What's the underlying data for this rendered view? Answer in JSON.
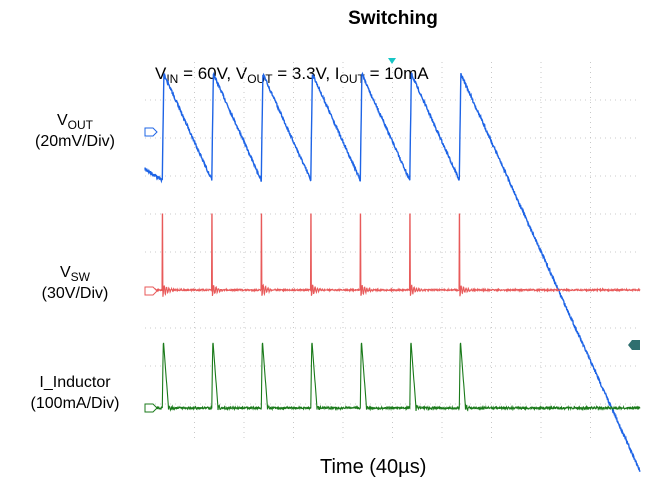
{
  "chart_data": {
    "type": "line",
    "title": "Switching",
    "conditions": {
      "v_in_sym": "V",
      "v_in_sub": "IN",
      "v_in_val": " = 60V, ",
      "v_out_sym": "V",
      "v_out_sub": "OUT",
      "v_out_val": " = 3.3V, ",
      "i_out_sym": "I",
      "i_out_sub": "OUT",
      "i_out_val": " = 10mA"
    },
    "xlabel": "Time (40µs)",
    "grid": true,
    "time_per_div_us": 40,
    "switching_period_us": 40,
    "pulse_times_us": [
      14,
      54,
      94,
      134,
      174,
      214,
      254
    ],
    "colors": {
      "vout": "#1e64e6",
      "vsw": "#e85a5a",
      "inductor": "#1a7a1a",
      "grid": "#bbbbbb",
      "trigger": "#17c6c6",
      "marker": "#2f6f6f"
    },
    "series": [
      {
        "name_sym": "V",
        "name_sub": "OUT",
        "name_rest": "",
        "scale": "(20mV/Div)",
        "kind": "sawtooth",
        "ripple_mV_pp": 56
      },
      {
        "name_sym": "V",
        "name_sub": "SW",
        "name_rest": "",
        "scale": "(30V/Div)",
        "kind": "spike",
        "peak_V": 60
      },
      {
        "name_sym": "I_Inductor",
        "name_sub": "",
        "name_rest": "",
        "scale": "(100mA/Div)",
        "kind": "triangle",
        "peak_mA": 180
      }
    ]
  }
}
